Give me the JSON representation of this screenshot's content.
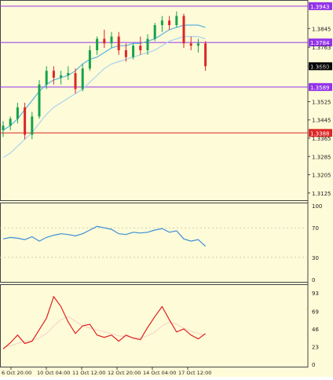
{
  "colors": {
    "background": "#fefbd8",
    "bull_candle": "#16a34a",
    "bear_candle": "#dc2626",
    "ma_fast": "#5ab4e0",
    "ma_slow": "#a8d4ee",
    "level_line_purple": "#9333ea",
    "level_line_red": "#dc2626",
    "rsi_line": "#3b8fd8",
    "stoch_main": "#e02020",
    "stoch_signal": "#f3d2c8"
  },
  "chart_data": [
    {
      "type": "candlestick",
      "panel": "price",
      "ylim": [
        1.309,
        1.397
      ],
      "yticks": [
        "1.3845",
        "1.3763",
        "1.3680",
        "1.3525",
        "1.3445",
        "1.3365",
        "1.3285",
        "1.3205",
        "1.3125"
      ],
      "level_lines": [
        {
          "value": 1.3943,
          "label": "1.3943",
          "color": "purple"
        },
        {
          "value": 1.3784,
          "label": "1.3784",
          "color": "purple"
        },
        {
          "value": 1.3589,
          "label": "1.3589",
          "color": "purple"
        },
        {
          "value": 1.3388,
          "label": "1.3388",
          "color": "red"
        }
      ],
      "current_price": "1.3680",
      "ma_fast": [
        1.34,
        1.342,
        1.345,
        1.349,
        1.353,
        1.357,
        1.36,
        1.362,
        1.363,
        1.364,
        1.366,
        1.369,
        1.371,
        1.372,
        1.374,
        1.376,
        1.377,
        1.377,
        1.378,
        1.378,
        1.379,
        1.38,
        1.382,
        1.384,
        1.385,
        1.386,
        1.386,
        1.386,
        1.385
      ],
      "ma_slow": [
        1.328,
        1.33,
        1.333,
        1.336,
        1.339,
        1.343,
        1.347,
        1.35,
        1.352,
        1.354,
        1.356,
        1.358,
        1.361,
        1.364,
        1.367,
        1.369,
        1.37,
        1.371,
        1.372,
        1.373,
        1.374,
        1.375,
        1.377,
        1.379,
        1.38,
        1.381,
        1.381,
        1.381,
        1.38
      ],
      "candles": [
        {
          "o": 1.34,
          "h": 1.344,
          "l": 1.337,
          "c": 1.342
        },
        {
          "o": 1.342,
          "h": 1.346,
          "l": 1.34,
          "c": 1.345
        },
        {
          "o": 1.345,
          "h": 1.352,
          "l": 1.343,
          "c": 1.35
        },
        {
          "o": 1.35,
          "h": 1.352,
          "l": 1.336,
          "c": 1.338
        },
        {
          "o": 1.338,
          "h": 1.348,
          "l": 1.336,
          "c": 1.346
        },
        {
          "o": 1.346,
          "h": 1.362,
          "l": 1.345,
          "c": 1.36
        },
        {
          "o": 1.36,
          "h": 1.368,
          "l": 1.358,
          "c": 1.366
        },
        {
          "o": 1.366,
          "h": 1.368,
          "l": 1.36,
          "c": 1.363
        },
        {
          "o": 1.363,
          "h": 1.366,
          "l": 1.36,
          "c": 1.364
        },
        {
          "o": 1.364,
          "h": 1.368,
          "l": 1.362,
          "c": 1.365
        },
        {
          "o": 1.365,
          "h": 1.367,
          "l": 1.356,
          "c": 1.358
        },
        {
          "o": 1.358,
          "h": 1.369,
          "l": 1.357,
          "c": 1.367
        },
        {
          "o": 1.367,
          "h": 1.377,
          "l": 1.366,
          "c": 1.375
        },
        {
          "o": 1.375,
          "h": 1.381,
          "l": 1.373,
          "c": 1.38
        },
        {
          "o": 1.38,
          "h": 1.384,
          "l": 1.376,
          "c": 1.378
        },
        {
          "o": 1.378,
          "h": 1.383,
          "l": 1.376,
          "c": 1.381
        },
        {
          "o": 1.381,
          "h": 1.383,
          "l": 1.373,
          "c": 1.375
        },
        {
          "o": 1.375,
          "h": 1.378,
          "l": 1.37,
          "c": 1.372
        },
        {
          "o": 1.372,
          "h": 1.378,
          "l": 1.371,
          "c": 1.377
        },
        {
          "o": 1.377,
          "h": 1.381,
          "l": 1.373,
          "c": 1.375
        },
        {
          "o": 1.375,
          "h": 1.382,
          "l": 1.373,
          "c": 1.38
        },
        {
          "o": 1.38,
          "h": 1.387,
          "l": 1.379,
          "c": 1.386
        },
        {
          "o": 1.386,
          "h": 1.39,
          "l": 1.383,
          "c": 1.388
        },
        {
          "o": 1.388,
          "h": 1.39,
          "l": 1.384,
          "c": 1.386
        },
        {
          "o": 1.386,
          "h": 1.392,
          "l": 1.385,
          "c": 1.39
        },
        {
          "o": 1.39,
          "h": 1.391,
          "l": 1.376,
          "c": 1.378
        },
        {
          "o": 1.378,
          "h": 1.381,
          "l": 1.375,
          "c": 1.377
        },
        {
          "o": 1.377,
          "h": 1.38,
          "l": 1.374,
          "c": 1.378
        },
        {
          "o": 1.378,
          "h": 1.379,
          "l": 1.366,
          "c": 1.368
        }
      ]
    },
    {
      "type": "line",
      "panel": "rsi",
      "ylim": [
        0,
        100
      ],
      "yticks": [
        "100",
        "70",
        "30",
        "0"
      ],
      "series": [
        {
          "values": [
            55,
            57,
            56,
            54,
            58,
            52,
            57,
            60,
            62,
            61,
            59,
            62,
            67,
            72,
            70,
            68,
            62,
            61,
            64,
            63,
            64,
            67,
            69,
            64,
            66,
            55,
            52,
            54,
            45
          ]
        }
      ]
    },
    {
      "type": "line",
      "panel": "stochastic",
      "ylim": [
        0,
        100
      ],
      "yticks": [
        "93",
        "69",
        "46",
        "23",
        "0"
      ],
      "series": [
        {
          "values": [
            20,
            28,
            38,
            27,
            30,
            45,
            60,
            88,
            75,
            55,
            40,
            50,
            52,
            38,
            35,
            38,
            30,
            38,
            34,
            32,
            48,
            62,
            75,
            58,
            42,
            46,
            38,
            33,
            40
          ]
        },
        {
          "values": [
            22,
            24,
            27,
            30,
            31,
            34,
            40,
            50,
            58,
            62,
            56,
            50,
            47,
            45,
            42,
            40,
            37,
            36,
            35,
            34,
            37,
            42,
            50,
            55,
            52,
            47,
            43,
            40,
            38
          ]
        }
      ]
    }
  ],
  "time_axis": [
    "6 Oct 20:00",
    "10 Oct 04:00",
    "11 Oct 12:00",
    "12 Oct 20:00",
    "14 Oct 04:00",
    "17 Oct 12:00"
  ]
}
